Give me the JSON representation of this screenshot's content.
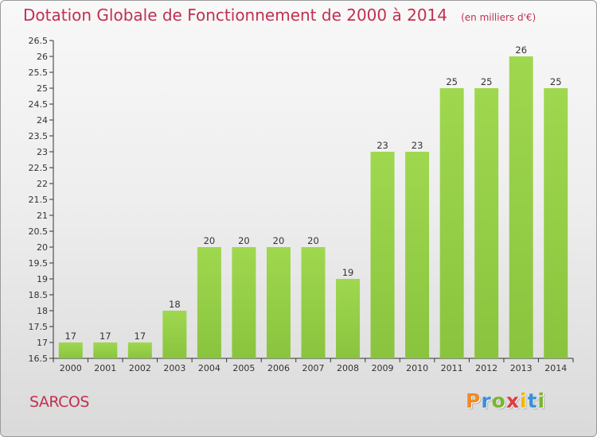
{
  "chart_data": {
    "type": "bar",
    "title": "Dotation Globale de Fonctionnement de 2000 à 2014",
    "subtitle": "(en milliers d'€)",
    "categories": [
      "2000",
      "2001",
      "2002",
      "2003",
      "2004",
      "2005",
      "2006",
      "2007",
      "2008",
      "2009",
      "2010",
      "2011",
      "2012",
      "2013",
      "2014"
    ],
    "values": [
      17,
      17,
      17,
      18,
      20,
      20,
      20,
      20,
      19,
      23,
      23,
      25,
      25,
      26,
      25
    ],
    "ylim": [
      16.5,
      26.5
    ],
    "yticks": [
      "16.5",
      "17",
      "17.5",
      "18",
      "18.5",
      "19",
      "19.5",
      "20",
      "20.5",
      "21",
      "21.5",
      "22",
      "22.5",
      "23",
      "23.5",
      "24",
      "24.5",
      "25",
      "25.5",
      "26",
      "26.5"
    ],
    "xlabel": "",
    "ylabel": "",
    "grid": false,
    "bar_color": "#8ac43e"
  },
  "footer": {
    "place": "SARCOS",
    "brand_letters": [
      {
        "ch": "P",
        "color": "#f08a24"
      },
      {
        "ch": "r",
        "color": "#3a8fd6"
      },
      {
        "ch": "o",
        "color": "#7ab52f"
      },
      {
        "ch": "x",
        "color": "#e03d3d"
      },
      {
        "ch": "i",
        "color": "#f2b705"
      },
      {
        "ch": "t",
        "color": "#3a8fd6"
      },
      {
        "ch": "i",
        "color": "#7ab52f"
      }
    ]
  },
  "colors": {
    "title": "#c1304f",
    "axis": "#333333"
  }
}
